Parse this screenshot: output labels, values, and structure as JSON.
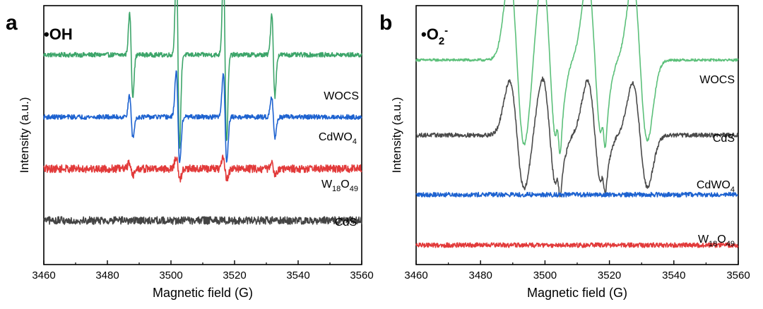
{
  "chart_data": [
    {
      "panel_letter": "a",
      "type": "line",
      "title": "•OH",
      "xlabel": "Magnetic field (G)",
      "ylabel": "Intensity (a.u.)",
      "xlim": [
        3460,
        3560
      ],
      "xticks": [
        3460,
        3480,
        3500,
        3520,
        3540,
        3560
      ],
      "ylim": [
        0,
        10
      ],
      "yticks_shown": false,
      "series": [
        {
          "name": "WOCS",
          "label_main": "WOCS",
          "label_sub": "",
          "label_tail": "",
          "color": "#3da56a",
          "baseline": 8.1,
          "noise": 0.09,
          "width": 0.5,
          "peaks": [
            {
              "x": 3487.5,
              "a": 1.6
            },
            {
              "x": 3502.2,
              "a": 3.6
            },
            {
              "x": 3517.0,
              "a": 3.4
            },
            {
              "x": 3532.2,
              "a": 1.6
            }
          ],
          "shoulders": []
        },
        {
          "name": "CdWO4",
          "label_main": "CdWO",
          "label_sub": "4",
          "label_tail": "",
          "color": "#1d62d0",
          "baseline": 5.7,
          "noise": 0.09,
          "width": 0.55,
          "peaks": [
            {
              "x": 3487.5,
              "a": 0.8
            },
            {
              "x": 3502.2,
              "a": 1.8
            },
            {
              "x": 3517.0,
              "a": 1.7
            },
            {
              "x": 3532.2,
              "a": 0.8
            }
          ],
          "shoulders": []
        },
        {
          "name": "W18O49",
          "label_main": "W",
          "label_sub": "18",
          "label_tail": "O",
          "label_sub2": "49",
          "color": "#e23a3a",
          "baseline": 3.7,
          "noise": 0.15,
          "width": 0.6,
          "peaks": [
            {
              "x": 3487.5,
              "a": 0.25
            },
            {
              "x": 3502.2,
              "a": 0.45
            },
            {
              "x": 3517.0,
              "a": 0.4
            },
            {
              "x": 3532.2,
              "a": 0.2
            }
          ],
          "shoulders": []
        },
        {
          "name": "CdS",
          "label_main": "CdS",
          "label_sub": "",
          "label_tail": "",
          "color": "#444444",
          "baseline": 1.7,
          "noise": 0.15,
          "width": 0.6,
          "peaks": [],
          "shoulders": []
        }
      ]
    },
    {
      "panel_letter": "b",
      "type": "line",
      "title": "•O",
      "title_sub": "2",
      "title_sup": "-",
      "xlabel": "Magnetic field (G)",
      "ylabel": "Intensity (a.u.)",
      "xlim": [
        3460,
        3560
      ],
      "xticks": [
        3460,
        3480,
        3500,
        3520,
        3540,
        3560
      ],
      "ylim": [
        0,
        10
      ],
      "yticks_shown": false,
      "series": [
        {
          "name": "WOCS",
          "label_main": "WOCS",
          "label_sub": "",
          "label_tail": "",
          "color": "#5cc07a",
          "baseline": 7.9,
          "noise": 0.05,
          "width": 2.3,
          "peaks": [
            {
              "x": 3491.3,
              "a": 3.3
            },
            {
              "x": 3501.5,
              "a": 3.4
            },
            {
              "x": 3515.5,
              "a": 3.2
            },
            {
              "x": 3529.5,
              "a": 3.1
            }
          ],
          "shoulders": [
            {
              "x": 3504.3,
              "a": 0.7
            },
            {
              "x": 3518.3,
              "a": 0.6
            }
          ]
        },
        {
          "name": "CdS",
          "label_main": "CdS",
          "label_sub": "",
          "label_tail": "",
          "color": "#4a4a4a",
          "baseline": 5.0,
          "noise": 0.08,
          "width": 2.3,
          "peaks": [
            {
              "x": 3491.3,
              "a": 2.1
            },
            {
              "x": 3501.5,
              "a": 2.2
            },
            {
              "x": 3515.5,
              "a": 2.1
            },
            {
              "x": 3529.5,
              "a": 2.0
            }
          ],
          "shoulders": [
            {
              "x": 3504.3,
              "a": 0.5
            },
            {
              "x": 3518.3,
              "a": 0.45
            }
          ]
        },
        {
          "name": "CdWO4",
          "label_main": "CdWO",
          "label_sub": "4",
          "label_tail": "",
          "color": "#1d62d0",
          "baseline": 2.7,
          "noise": 0.09,
          "width": 0.6,
          "peaks": [],
          "shoulders": []
        },
        {
          "name": "W18O49",
          "label_main": "W",
          "label_sub": "18",
          "label_tail": "O",
          "label_sub2": "49",
          "color": "#e23a3a",
          "baseline": 0.75,
          "noise": 0.09,
          "width": 0.6,
          "peaks": [],
          "shoulders": []
        }
      ]
    }
  ]
}
